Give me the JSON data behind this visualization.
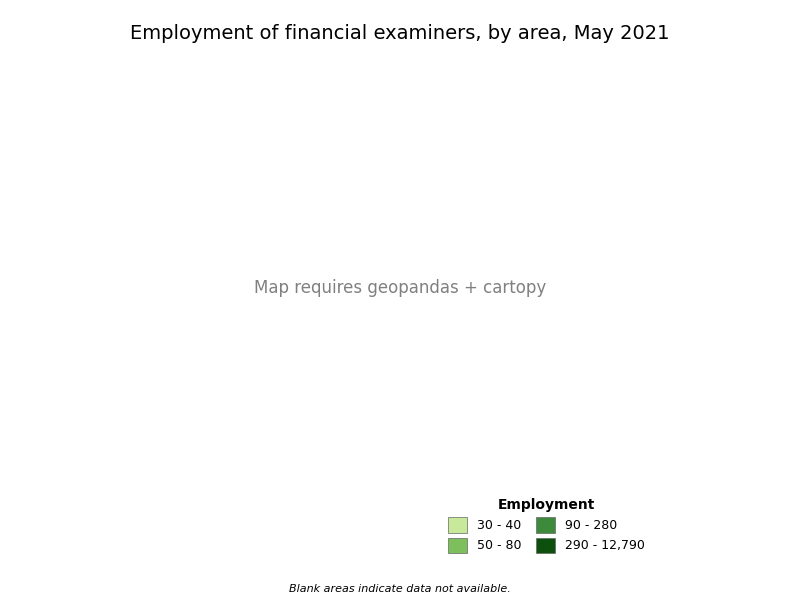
{
  "title": "Employment of financial examiners, by area, May 2021",
  "title_fontsize": 14,
  "legend_title": "Employment",
  "legend_title_fontsize": 10,
  "legend_fontsize": 9,
  "legend_items": [
    {
      "label": "30 - 40",
      "color": "#c8e89a"
    },
    {
      "label": "50 - 80",
      "color": "#7dbf5a"
    },
    {
      "label": "90 - 280",
      "color": "#3d8a3d"
    },
    {
      "label": "290 - 12,790",
      "color": "#0d4f0d"
    }
  ],
  "footnote": "Blank areas indicate data not available.",
  "footnote_fontsize": 8,
  "background_color": "#ffffff",
  "county_edge_color": "#aaaaaa",
  "county_edge_linewidth": 0.2,
  "state_edge_color": "#333333",
  "state_edge_linewidth": 0.6,
  "no_data_color": "#ffffff",
  "figsize": [
    8.0,
    6.0
  ],
  "dpi": 100
}
